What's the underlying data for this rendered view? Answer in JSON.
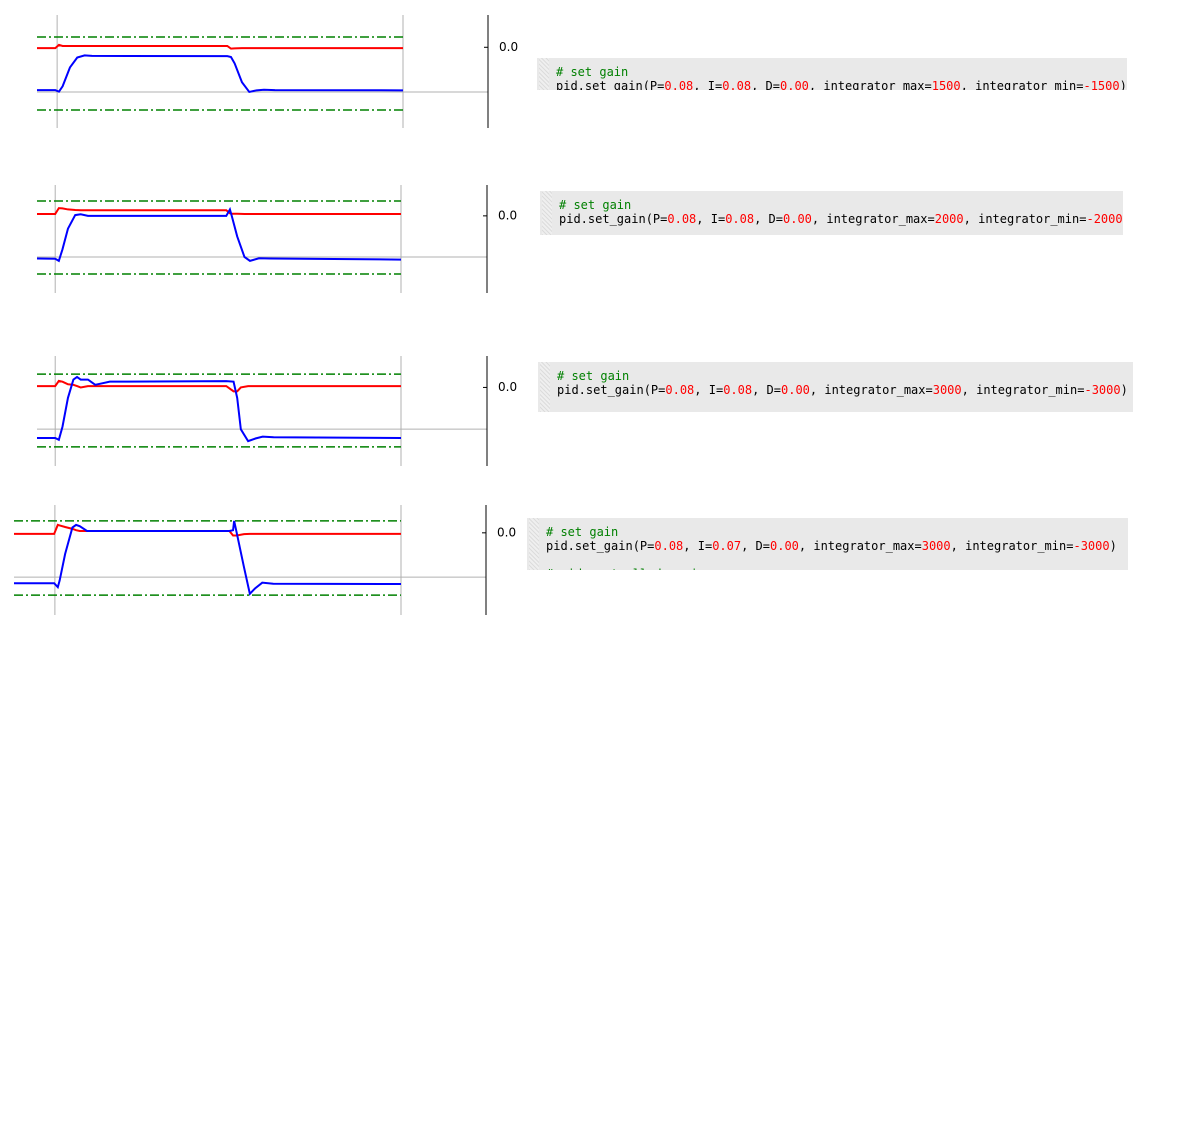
{
  "panels": [
    {
      "chart_data": {
        "type": "line",
        "xlim": [
          0,
          100
        ],
        "ylim": [
          -3,
          1.2
        ],
        "x": [
          0,
          5,
          6,
          7,
          9,
          11,
          13,
          15,
          52,
          53,
          54,
          56,
          58,
          60,
          62,
          65,
          100
        ],
        "series": [
          {
            "color": "#ff0000",
            "values": [
              -0.03,
              -0.03,
              0.09,
              0.05,
              0.05,
              0.05,
              0.05,
              0.05,
              0.05,
              -0.05,
              -0.04,
              -0.03,
              -0.03,
              -0.03,
              -0.03,
              -0.03,
              -0.03
            ]
          },
          {
            "color": "#0000ff",
            "values": [
              -1.59,
              -1.59,
              -1.65,
              -1.45,
              -0.75,
              -0.38,
              -0.3,
              -0.32,
              -0.33,
              -0.36,
              -0.6,
              -1.3,
              -1.66,
              -1.6,
              -1.58,
              -1.59,
              -1.6
            ]
          }
        ],
        "reference_lines": [
          {
            "value": 0.38,
            "color": "#008000"
          },
          {
            "value": -2.33,
            "color": "#008000"
          }
        ],
        "hline": -1.66,
        "vlines": [
          5.5,
          100
        ],
        "yticks": [
          {
            "value": 0,
            "label": "0.0"
          }
        ]
      },
      "code": {
        "comment": "# set gain",
        "tokens": [
          {
            "text": "pid.set_gain(P=",
            "kind": "plain"
          },
          {
            "text": "0.08",
            "kind": "num"
          },
          {
            "text": ", I=",
            "kind": "plain"
          },
          {
            "text": "0.08",
            "kind": "num"
          },
          {
            "text": ", D=",
            "kind": "plain"
          },
          {
            "text": "0.00",
            "kind": "num"
          },
          {
            "text": ", integrator_max=",
            "kind": "plain"
          },
          {
            "text": "1500",
            "kind": "num"
          },
          {
            "text": ", integrator_min=",
            "kind": "plain"
          },
          {
            "text": "-1500",
            "kind": "num"
          },
          {
            "text": ")",
            "kind": "plain"
          }
        ]
      }
    },
    {
      "chart_data": {
        "type": "line",
        "xlim": [
          0,
          100
        ],
        "ylim": [
          -3,
          1.2
        ],
        "x": [
          0,
          5,
          6,
          7,
          8.5,
          10.5,
          12,
          14,
          52,
          53,
          53.5,
          55,
          57,
          58.5,
          61,
          64,
          100
        ],
        "series": [
          {
            "color": "#ff0000",
            "values": [
              0.07,
              0.07,
              0.3,
              0.29,
              0.25,
              0.23,
              0.22,
              0.22,
              0.22,
              0.1,
              0.08,
              0.08,
              0.07,
              0.07,
              0.07,
              0.07,
              0.07
            ]
          },
          {
            "color": "#0000ff",
            "values": [
              -1.66,
              -1.67,
              -1.75,
              -1.3,
              -0.5,
              0.03,
              0.06,
              0,
              0,
              0.25,
              0,
              -0.8,
              -1.6,
              -1.75,
              -1.65,
              -1.66,
              -1.7
            ]
          }
        ],
        "reference_lines": [
          {
            "value": 0.58,
            "color": "#008000"
          },
          {
            "value": -2.26,
            "color": "#008000"
          }
        ],
        "hline": -1.6,
        "vlines": [
          5,
          100
        ],
        "yticks": [
          {
            "value": 0,
            "label": "0.0"
          }
        ]
      },
      "code": {
        "comment": "# set gain",
        "tokens": [
          {
            "text": "pid.set_gain(P=",
            "kind": "plain"
          },
          {
            "text": "0.08",
            "kind": "num"
          },
          {
            "text": ", I=",
            "kind": "plain"
          },
          {
            "text": "0.08",
            "kind": "num"
          },
          {
            "text": ", D=",
            "kind": "plain"
          },
          {
            "text": "0.00",
            "kind": "num"
          },
          {
            "text": ", integrator_max=",
            "kind": "plain"
          },
          {
            "text": "2000",
            "kind": "num"
          },
          {
            "text": ", integrator_min=",
            "kind": "plain"
          },
          {
            "text": "-2000",
            "kind": "num"
          },
          {
            "text": ")",
            "kind": "plain"
          }
        ]
      }
    },
    {
      "chart_data": {
        "type": "line",
        "xlim": [
          0,
          100
        ],
        "ylim": [
          -3,
          1.2
        ],
        "x": [
          0,
          5,
          6,
          7,
          8.5,
          10,
          11,
          12,
          14,
          16,
          20,
          52,
          54,
          55,
          56,
          58,
          60,
          62,
          65,
          100
        ],
        "series": [
          {
            "color": "#ff0000",
            "values": [
              0.05,
              0.05,
              0.25,
              0.22,
              0.12,
              0.1,
              0.05,
              0,
              0.05,
              0.05,
              0.05,
              0.05,
              -0.15,
              -0.15,
              0,
              0.05,
              0.05,
              0.05,
              0.05,
              0.05
            ]
          },
          {
            "color": "#0000ff",
            "values": [
              -1.93,
              -1.93,
              -2,
              -1.5,
              -0.4,
              0.3,
              0.4,
              0.3,
              0.3,
              0.1,
              0.22,
              0.24,
              0.22,
              -0.4,
              -1.6,
              -2.05,
              -1.95,
              -1.88,
              -1.9,
              -1.93
            ]
          }
        ],
        "reference_lines": [
          {
            "value": 0.51,
            "color": "#008000"
          },
          {
            "value": -2.27,
            "color": "#008000"
          }
        ],
        "hline": -1.59,
        "vlines": [
          5,
          100
        ],
        "yticks": [
          {
            "value": 0,
            "label": "0.0"
          }
        ]
      },
      "code": {
        "comment": "# set gain",
        "tokens": [
          {
            "text": "pid.set_gain(P=",
            "kind": "plain"
          },
          {
            "text": "0.08",
            "kind": "num"
          },
          {
            "text": ", I=",
            "kind": "plain"
          },
          {
            "text": "0.08",
            "kind": "num"
          },
          {
            "text": ", D=",
            "kind": "plain"
          },
          {
            "text": "0.00",
            "kind": "num"
          },
          {
            "text": ", integrator_max=",
            "kind": "plain"
          },
          {
            "text": "3000",
            "kind": "num"
          },
          {
            "text": ", integrator_min=",
            "kind": "plain"
          },
          {
            "text": "-3000",
            "kind": "num"
          },
          {
            "text": ")",
            "kind": "plain"
          }
        ]
      }
    },
    {
      "chart_data": {
        "type": "line",
        "xlim": [
          -6,
          100
        ],
        "ylim": [
          -3.1,
          1.05
        ],
        "x": [
          -6,
          5,
          6,
          6.5,
          8,
          10,
          11,
          12,
          14,
          53,
          54,
          54.3,
          55,
          57,
          58.6,
          60,
          62,
          65,
          100
        ],
        "series": [
          {
            "color": "#ff0000",
            "values": [
              -0.04,
              -0.04,
              0.3,
              0.28,
              0.22,
              0.15,
              0.1,
              0.07,
              0.07,
              0.07,
              -0.1,
              -0.1,
              -0.1,
              -0.05,
              -0.04,
              -0.04,
              -0.04,
              -0.04,
              -0.04
            ]
          },
          {
            "color": "#0000ff",
            "values": [
              -1.9,
              -1.9,
              -2.05,
              -1.8,
              -0.8,
              0.2,
              0.3,
              0.25,
              0.07,
              0.07,
              0.1,
              0.45,
              0,
              -1.3,
              -2.3,
              -2.1,
              -1.88,
              -1.92,
              -1.93
            ]
          }
        ],
        "reference_lines": [
          {
            "value": 0.45,
            "color": "#008000"
          },
          {
            "value": -2.35,
            "color": "#008000"
          }
        ],
        "hline": -1.67,
        "vlines": [
          5.2,
          100
        ],
        "yticks": [
          {
            "value": 0,
            "label": "0.0"
          }
        ]
      },
      "code": {
        "comment": "# set gain",
        "tokens": [
          {
            "text": "pid.set_gain(P=",
            "kind": "plain"
          },
          {
            "text": "0.08",
            "kind": "num"
          },
          {
            "text": ", I=",
            "kind": "plain"
          },
          {
            "text": "0.07",
            "kind": "num"
          },
          {
            "text": ", D=",
            "kind": "plain"
          },
          {
            "text": "0.00",
            "kind": "num"
          },
          {
            "text": ", integrator_max=",
            "kind": "plain"
          },
          {
            "text": "3000",
            "kind": "num"
          },
          {
            "text": ", integrator_min=",
            "kind": "plain"
          },
          {
            "text": "-3000",
            "kind": "num"
          },
          {
            "text": ")",
            "kind": "plain"
          }
        ],
        "trailing": "# pid controlled moving"
      }
    }
  ]
}
